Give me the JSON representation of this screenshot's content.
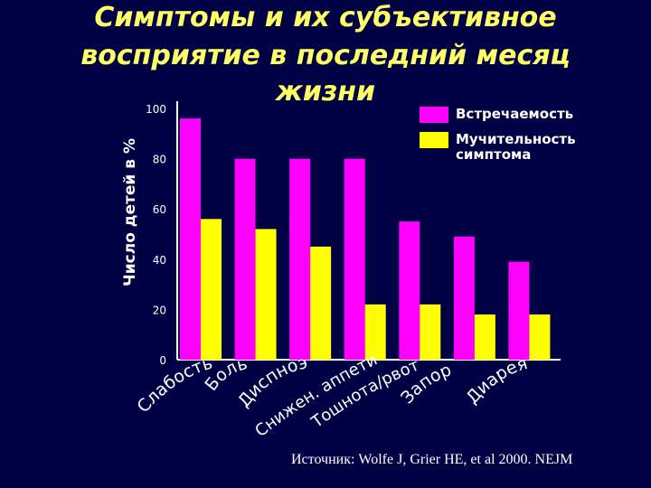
{
  "title_lines": [
    "Симптомы и их субъективное",
    "восприятие в последний месяц",
    "жизни"
  ],
  "source_text": "Источник: Wolfe J, Grier HE, et al 2000. NEJM",
  "colors": {
    "background": "#000044",
    "series_frequency": "#ff00ff",
    "series_distress": "#ffff00",
    "title": "#ffff66",
    "text": "#ffffff"
  },
  "chart_data": {
    "type": "bar",
    "title": "Симптомы и их субъективное восприятие в последний месяц жизни",
    "xlabel": "",
    "ylabel": "Число детей в %",
    "ylim": [
      0,
      100
    ],
    "yticks": [
      0,
      20,
      40,
      60,
      80,
      100
    ],
    "grid": false,
    "legend_position": "top-right",
    "categories": [
      "Слабость",
      "Боль",
      "Диспноэ",
      "Снижен. аппетит",
      "Тошнота/рвота",
      "Запор",
      "Диарея"
    ],
    "series": [
      {
        "name": "Встречаемость",
        "color": "#ff00ff",
        "values": [
          96,
          80,
          80,
          80,
          55,
          49,
          39
        ]
      },
      {
        "name": "Мучительность симптома",
        "color": "#ffff00",
        "values": [
          56,
          52,
          45,
          22,
          22,
          18,
          18
        ]
      }
    ]
  }
}
